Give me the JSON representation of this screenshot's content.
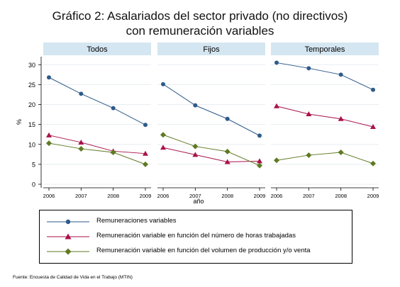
{
  "title_lines": [
    "Gráfico 2: Asalariados del sector privado (no directivos)",
    "con remuneración variables"
  ],
  "source": "Fuente: Encuesta de Calidad de Vida en el Trabajo (MTIN)",
  "chart_data": {
    "type": "line",
    "ylabel": "%",
    "xlabel": "año",
    "ylim": [
      0,
      32
    ],
    "yticks": [
      0,
      5,
      10,
      15,
      20,
      25,
      30
    ],
    "x": [
      "2006",
      "2007",
      "2008",
      "2009"
    ],
    "grid": true,
    "legend_position": "bottom",
    "colors": {
      "panel_header": "#d4e6f1",
      "grid": "#e8eef2"
    },
    "panels": [
      {
        "name": "Todos",
        "series": [
          {
            "name": "Remuneraciones variables",
            "color": "#2e5a8a",
            "marker": "circle",
            "values": [
              26.8,
              22.7,
              19.1,
              14.9
            ]
          },
          {
            "name": "Remuneración variable en función del número de horas trabajadas",
            "color": "#a8124a",
            "marker": "triangle",
            "values": [
              12.3,
              10.5,
              8.3,
              7.7
            ]
          },
          {
            "name": "Remuneración variable en función del volumen de producción y/o venta",
            "color": "#5f7a22",
            "marker": "diamond",
            "values": [
              10.3,
              8.9,
              8.0,
              5.0
            ]
          }
        ]
      },
      {
        "name": "Fijos",
        "series": [
          {
            "name": "Remuneraciones variables",
            "color": "#2e5a8a",
            "marker": "circle",
            "values": [
              25.1,
              19.8,
              16.4,
              12.2
            ]
          },
          {
            "name": "Remuneración variable en función del número de horas trabajadas",
            "color": "#a8124a",
            "marker": "triangle",
            "values": [
              9.2,
              7.4,
              5.6,
              5.8
            ]
          },
          {
            "name": "Remuneración variable en función del volumen de producción y/o venta",
            "color": "#5f7a22",
            "marker": "diamond",
            "values": [
              12.4,
              9.5,
              8.2,
              4.7
            ]
          }
        ]
      },
      {
        "name": "Temporales",
        "series": [
          {
            "name": "Remuneraciones variables",
            "color": "#2e5a8a",
            "marker": "circle",
            "values": [
              30.5,
              29.1,
              27.5,
              23.7
            ]
          },
          {
            "name": "Remuneración variable en función del número de horas trabajadas",
            "color": "#a8124a",
            "marker": "triangle",
            "values": [
              19.6,
              17.6,
              16.4,
              14.4
            ]
          },
          {
            "name": "Remuneración variable en función del volumen de producción y/o venta",
            "color": "#5f7a22",
            "marker": "diamond",
            "values": [
              6.0,
              7.3,
              8.0,
              5.2
            ]
          }
        ]
      }
    ],
    "legend": [
      {
        "label": "Remuneraciones variables",
        "color": "#2e5a8a",
        "marker": "circle"
      },
      {
        "label": "Remuneración variable en función del número de horas trabajadas",
        "color": "#a8124a",
        "marker": "triangle"
      },
      {
        "label": "Remuneración variable en función del volumen de producción y/o venta",
        "color": "#5f7a22",
        "marker": "diamond"
      }
    ]
  }
}
